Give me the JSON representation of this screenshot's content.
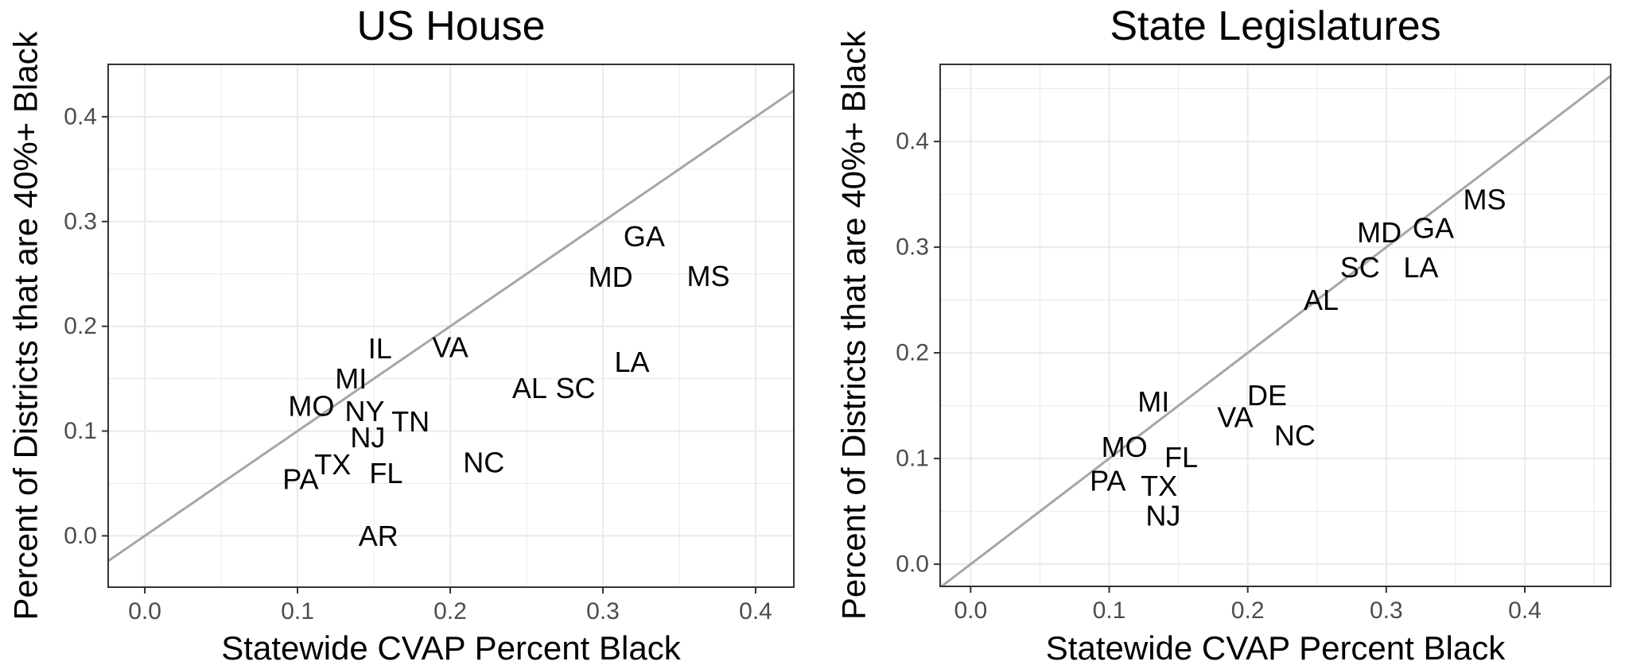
{
  "chart_data": [
    {
      "type": "scatter",
      "title": "US House",
      "xlabel": "Statewide CVAP Percent Black",
      "ylabel": "Percent of Districts that are 40%+ Black",
      "xlim": [
        -0.024,
        0.425
      ],
      "ylim": [
        -0.049,
        0.45
      ],
      "x_ticks": [
        0.0,
        0.1,
        0.2,
        0.3,
        0.4
      ],
      "x_tick_labels": [
        "0.0",
        "0.1",
        "0.2",
        "0.3",
        "0.4"
      ],
      "y_ticks": [
        0.0,
        0.1,
        0.2,
        0.3,
        0.4
      ],
      "y_tick_labels": [
        "0.0",
        "0.1",
        "0.2",
        "0.3",
        "0.4"
      ],
      "grid": true,
      "reference_line": {
        "slope": 1,
        "intercept": 0,
        "color": "#a6a6a6"
      },
      "points": [
        {
          "label": "GA",
          "x": 0.327,
          "y": 0.286
        },
        {
          "label": "MD",
          "x": 0.305,
          "y": 0.247
        },
        {
          "label": "MS",
          "x": 0.369,
          "y": 0.248
        },
        {
          "label": "IL",
          "x": 0.154,
          "y": 0.179
        },
        {
          "label": "VA",
          "x": 0.2,
          "y": 0.18
        },
        {
          "label": "LA",
          "x": 0.319,
          "y": 0.166
        },
        {
          "label": "MI",
          "x": 0.135,
          "y": 0.15
        },
        {
          "label": "AL",
          "x": 0.252,
          "y": 0.141
        },
        {
          "label": "SC",
          "x": 0.282,
          "y": 0.141
        },
        {
          "label": "MO",
          "x": 0.109,
          "y": 0.124
        },
        {
          "label": "NY",
          "x": 0.144,
          "y": 0.119
        },
        {
          "label": "TN",
          "x": 0.174,
          "y": 0.109
        },
        {
          "label": "NJ",
          "x": 0.146,
          "y": 0.094
        },
        {
          "label": "NC",
          "x": 0.222,
          "y": 0.07
        },
        {
          "label": "TX",
          "x": 0.123,
          "y": 0.068
        },
        {
          "label": "PA",
          "x": 0.102,
          "y": 0.054
        },
        {
          "label": "FL",
          "x": 0.158,
          "y": 0.06
        },
        {
          "label": "AR",
          "x": 0.153,
          "y": 0.0
        }
      ]
    },
    {
      "type": "scatter",
      "title": "State Legislatures",
      "xlabel": "Statewide CVAP Percent Black",
      "ylabel": "Percent of Districts that are 40%+ Black",
      "xlim": [
        -0.022,
        0.462
      ],
      "ylim": [
        -0.021,
        0.473
      ],
      "x_ticks": [
        0.0,
        0.1,
        0.2,
        0.3,
        0.4
      ],
      "x_tick_labels": [
        "0.0",
        "0.1",
        "0.2",
        "0.3",
        "0.4"
      ],
      "y_ticks": [
        0.0,
        0.1,
        0.2,
        0.3,
        0.4
      ],
      "y_tick_labels": [
        "0.0",
        "0.1",
        "0.2",
        "0.3",
        "0.4"
      ],
      "grid": true,
      "reference_line": {
        "slope": 1,
        "intercept": 0,
        "color": "#a6a6a6"
      },
      "points": [
        {
          "label": "MS",
          "x": 0.371,
          "y": 0.345
        },
        {
          "label": "GA",
          "x": 0.334,
          "y": 0.318
        },
        {
          "label": "MD",
          "x": 0.295,
          "y": 0.314
        },
        {
          "label": "SC",
          "x": 0.281,
          "y": 0.281
        },
        {
          "label": "LA",
          "x": 0.325,
          "y": 0.281
        },
        {
          "label": "AL",
          "x": 0.253,
          "y": 0.25
        },
        {
          "label": "DE",
          "x": 0.214,
          "y": 0.16
        },
        {
          "label": "MI",
          "x": 0.132,
          "y": 0.154
        },
        {
          "label": "VA",
          "x": 0.191,
          "y": 0.139
        },
        {
          "label": "NC",
          "x": 0.234,
          "y": 0.122
        },
        {
          "label": "MO",
          "x": 0.111,
          "y": 0.111
        },
        {
          "label": "FL",
          "x": 0.152,
          "y": 0.101
        },
        {
          "label": "PA",
          "x": 0.099,
          "y": 0.079
        },
        {
          "label": "TX",
          "x": 0.136,
          "y": 0.074
        },
        {
          "label": "NJ",
          "x": 0.139,
          "y": 0.046
        }
      ]
    }
  ]
}
